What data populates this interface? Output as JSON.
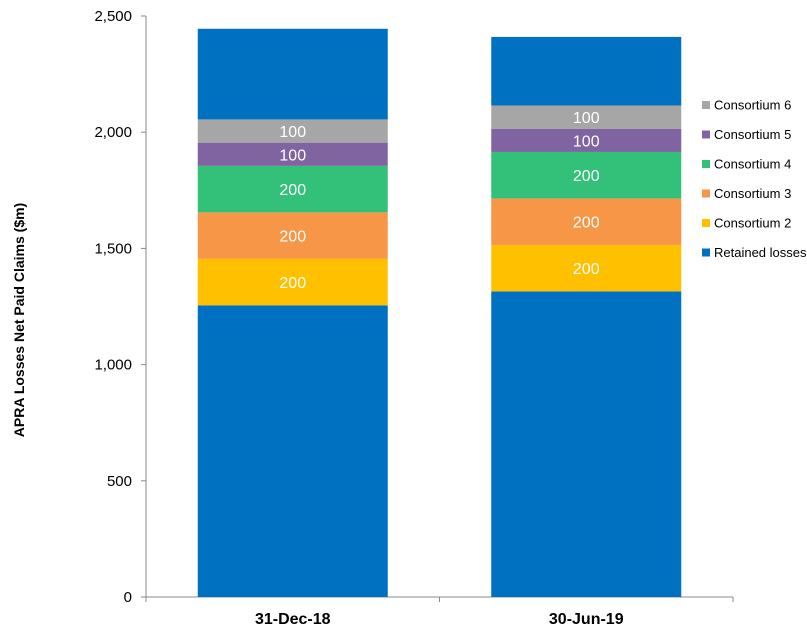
{
  "chart_data": {
    "type": "bar",
    "stacked": true,
    "title": "",
    "xlabel": "",
    "ylabel": "APRA Losses Net Paid Claims ($m)",
    "ylim": [
      0,
      2500
    ],
    "yticks": [
      0,
      500,
      1000,
      1500,
      2000,
      2500
    ],
    "ytick_labels": [
      "0",
      "500",
      "1,000",
      "1,500",
      "2,000",
      "2,500"
    ],
    "categories": [
      "31-Dec-18",
      "30-Jun-19"
    ],
    "legend_position": "right",
    "series": [
      {
        "name": "Retained losses",
        "color": "#0070C0",
        "values": [
          1255,
          1315
        ],
        "labels": [
          "",
          ""
        ]
      },
      {
        "name": "Consortium 2",
        "color": "#FFC000",
        "values": [
          200,
          200
        ],
        "labels": [
          "200",
          "200"
        ]
      },
      {
        "name": "Consortium 3",
        "color": "#F79646",
        "values": [
          200,
          200
        ],
        "labels": [
          "200",
          "200"
        ]
      },
      {
        "name": "Consortium 4",
        "color": "#33C17A",
        "values": [
          200,
          200
        ],
        "labels": [
          "200",
          "200"
        ]
      },
      {
        "name": "Consortium 5",
        "color": "#8064A2",
        "values": [
          100,
          100
        ],
        "labels": [
          "100",
          "100"
        ]
      },
      {
        "name": "Consortium 6",
        "color": "#A6A6A6",
        "values": [
          100,
          100
        ],
        "labels": [
          "100",
          "100"
        ]
      },
      {
        "name": "",
        "color": "#0070C0",
        "values": [
          390,
          295
        ],
        "labels": [
          "",
          ""
        ]
      }
    ]
  }
}
